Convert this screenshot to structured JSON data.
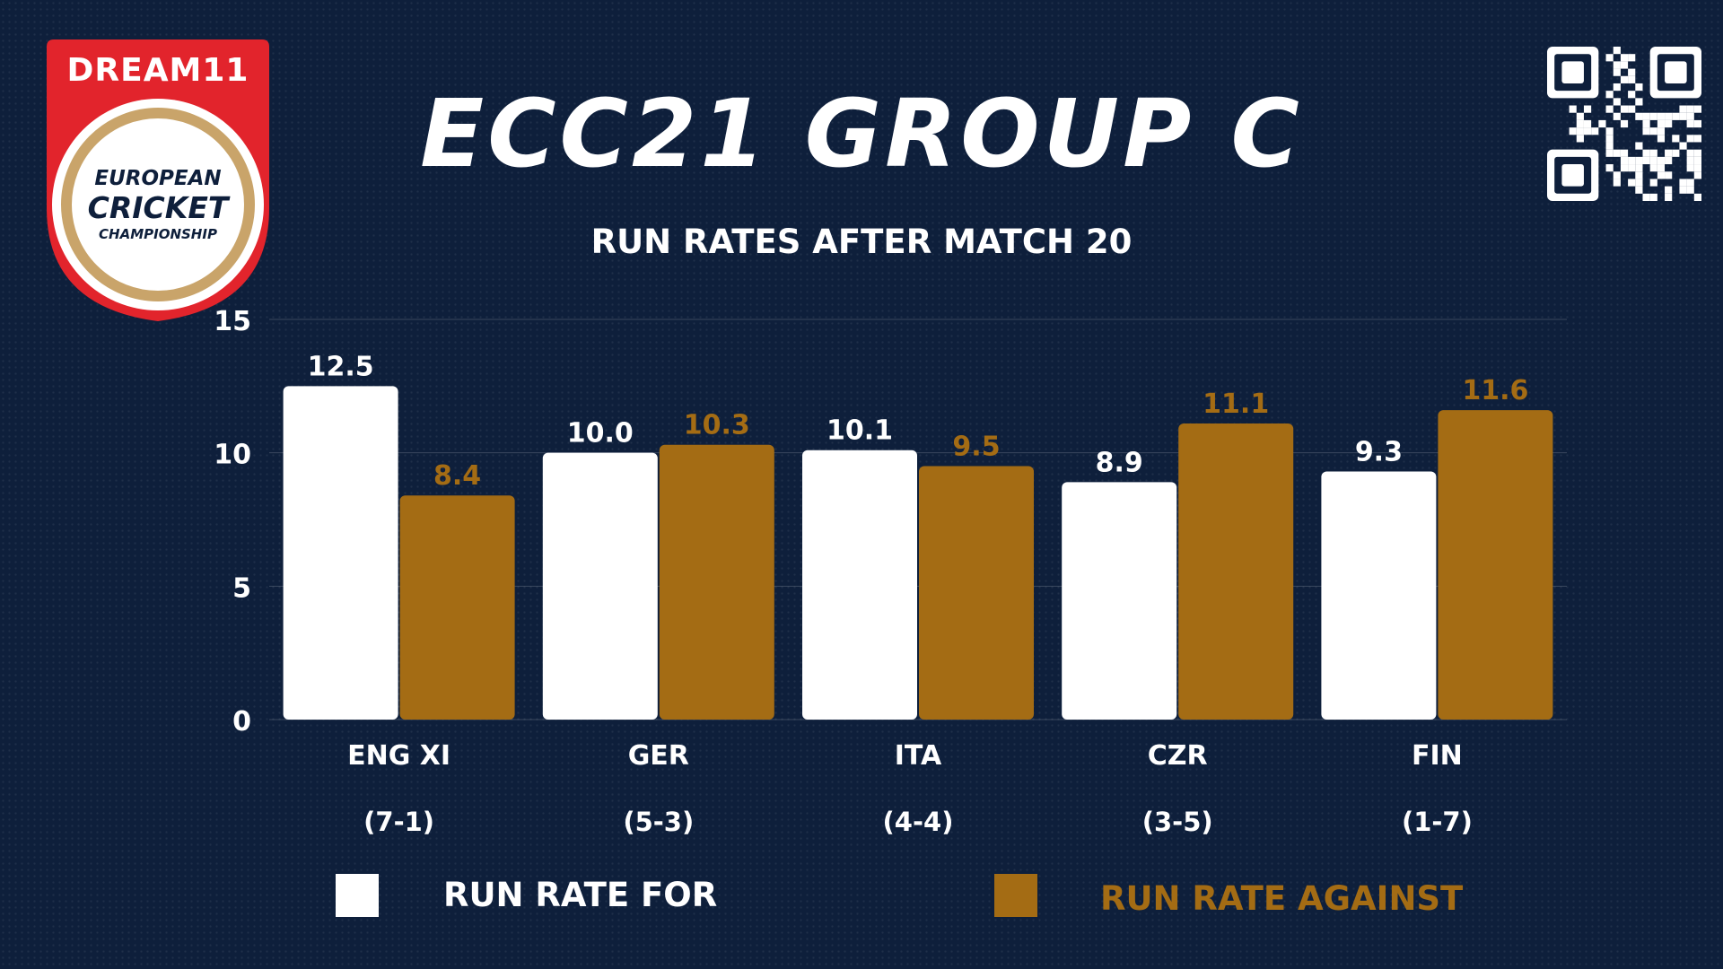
{
  "logo": {
    "brand": "DREAM11",
    "line1": "EUROPEAN",
    "line2": "CRICKET",
    "line3": "CHAMPIONSHIP"
  },
  "colors": {
    "background": "#0e1f3b",
    "for": "#ffffff",
    "against": "#a46c14",
    "logo_red": "#e2242c",
    "logo_gold": "#c9a46a"
  },
  "chart_data": {
    "type": "bar",
    "title": "ECC21 GROUP C",
    "subtitle": "RUN RATES AFTER MATCH 20",
    "categories": [
      "ENG XI",
      "GER",
      "ITA",
      "CZR",
      "FIN"
    ],
    "records": [
      "(7-1)",
      "(5-3)",
      "(4-4)",
      "(3-5)",
      "(1-7)"
    ],
    "series": [
      {
        "name": "RUN RATE FOR",
        "values": [
          12.5,
          10.0,
          10.1,
          8.9,
          9.3
        ],
        "labels": [
          "12.5",
          "10.0",
          "10.1",
          "8.9",
          "9.3"
        ],
        "color": "#ffffff"
      },
      {
        "name": "RUN RATE AGAINST",
        "values": [
          8.4,
          10.3,
          9.5,
          11.1,
          11.6
        ],
        "labels": [
          "8.4",
          "10.3",
          "9.5",
          "11.1",
          "11.6"
        ],
        "color": "#a46c14"
      }
    ],
    "yticks": [
      "0",
      "5",
      "10",
      "15"
    ],
    "ylim": [
      0,
      15
    ],
    "grid": true,
    "legend_position": "bottom"
  }
}
